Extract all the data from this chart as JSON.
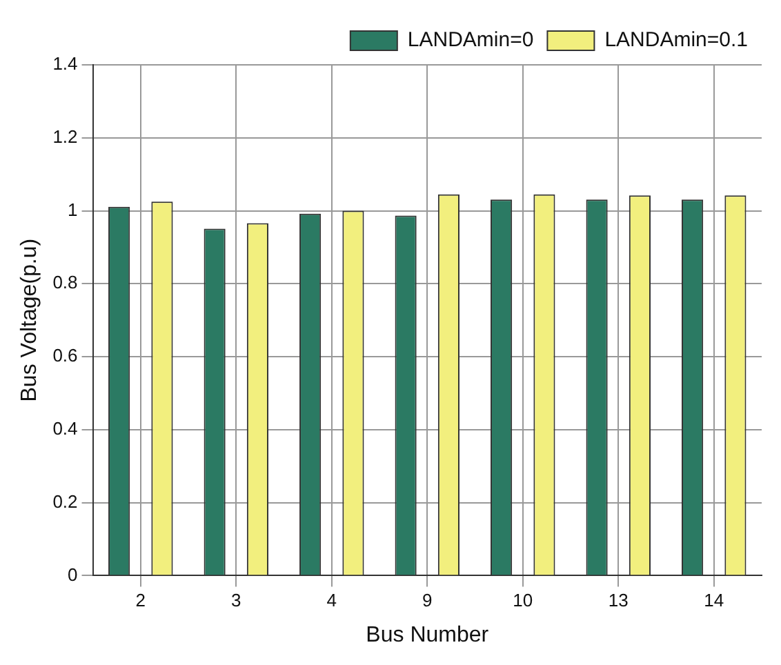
{
  "chart_data": {
    "type": "bar",
    "xlabel": "Bus Number",
    "ylabel": "Bus Voltage(p.u)",
    "categories": [
      "2",
      "3",
      "4",
      "9",
      "10",
      "13",
      "14"
    ],
    "series": [
      {
        "name": "LANDAmin=0",
        "color": "#2b7a63",
        "values": [
          1.011,
          0.951,
          0.992,
          0.987,
          1.031,
          1.031,
          1.031
        ]
      },
      {
        "name": "LANDAmin=0.1",
        "color": "#f2ef7e",
        "values": [
          1.025,
          0.966,
          1.0,
          1.045,
          1.045,
          1.042,
          1.042
        ]
      }
    ],
    "ylim": [
      0,
      1.4
    ],
    "yticks": [
      0,
      0.2,
      0.4,
      0.6,
      0.8,
      1,
      1.2,
      1.4
    ],
    "grid": true,
    "legend": "top right"
  }
}
